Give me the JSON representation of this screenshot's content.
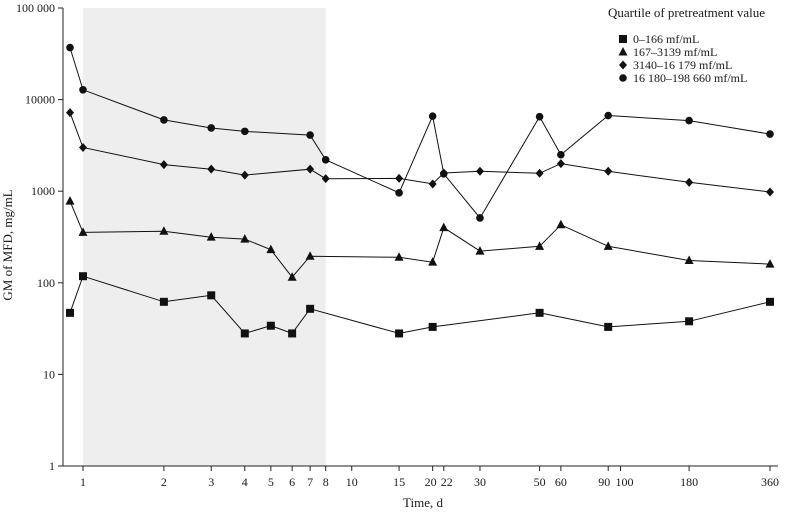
{
  "chart_data": {
    "type": "line",
    "xlabel": "Time, d",
    "ylabel": "GM of MFD, mg/mL",
    "y_scale": "log",
    "ylim": [
      1,
      100000
    ],
    "x_scale": "log (day 0 plotted just left of day 1)",
    "x_ticks": [
      "1",
      "2",
      "3",
      "4",
      "5",
      "6",
      "7",
      "8",
      "10",
      "15",
      "20",
      "22",
      "30",
      "50",
      "60",
      "90",
      "100",
      "180",
      "360"
    ],
    "y_ticks": [
      "1",
      "10",
      "100",
      "1000",
      "10000",
      "100 000"
    ],
    "shaded_region_x": [
      1,
      8
    ],
    "grid": false,
    "legend": {
      "title": "Quartile of pretreatment value",
      "placement": "top-right"
    },
    "series": [
      {
        "name": "0–166 mf/mL",
        "marker": "square",
        "points": [
          [
            0,
            47
          ],
          [
            1,
            118
          ],
          [
            2,
            62
          ],
          [
            3,
            73
          ],
          [
            4,
            28
          ],
          [
            5,
            34
          ],
          [
            6,
            28
          ],
          [
            7,
            52
          ],
          [
            15,
            28
          ],
          [
            20,
            33
          ],
          [
            50,
            47
          ],
          [
            90,
            33
          ],
          [
            180,
            38
          ],
          [
            360,
            62
          ]
        ]
      },
      {
        "name": "167–3139 mf/mL",
        "marker": "triangle",
        "points": [
          [
            0,
            780
          ],
          [
            1,
            355
          ],
          [
            2,
            365
          ],
          [
            3,
            315
          ],
          [
            4,
            300
          ],
          [
            5,
            230
          ],
          [
            6,
            115
          ],
          [
            7,
            195
          ],
          [
            15,
            190
          ],
          [
            20,
            168
          ],
          [
            22,
            400
          ],
          [
            30,
            222
          ],
          [
            50,
            250
          ],
          [
            60,
            430
          ],
          [
            90,
            250
          ],
          [
            180,
            175
          ],
          [
            360,
            160
          ]
        ]
      },
      {
        "name": "3140–16 179 mf/mL",
        "marker": "diamond",
        "points": [
          [
            0,
            7200
          ],
          [
            1,
            3000
          ],
          [
            2,
            1950
          ],
          [
            3,
            1740
          ],
          [
            4,
            1500
          ],
          [
            7,
            1740
          ],
          [
            8,
            1370
          ],
          [
            15,
            1380
          ],
          [
            20,
            1200
          ],
          [
            22,
            1580
          ],
          [
            30,
            1650
          ],
          [
            50,
            1570
          ],
          [
            60,
            2000
          ],
          [
            90,
            1650
          ],
          [
            180,
            1250
          ],
          [
            360,
            980
          ]
        ]
      },
      {
        "name": "16 180–198 660 mf/mL",
        "marker": "circle",
        "points": [
          [
            0,
            37000
          ],
          [
            1,
            12800
          ],
          [
            2,
            6000
          ],
          [
            3,
            4900
          ],
          [
            4,
            4500
          ],
          [
            7,
            4100
          ],
          [
            8,
            2200
          ],
          [
            15,
            960
          ],
          [
            20,
            6600
          ],
          [
            22,
            1550
          ],
          [
            30,
            510
          ],
          [
            50,
            6500
          ],
          [
            60,
            2500
          ],
          [
            90,
            6700
          ],
          [
            180,
            5900
          ],
          [
            360,
            4200
          ]
        ]
      }
    ]
  }
}
